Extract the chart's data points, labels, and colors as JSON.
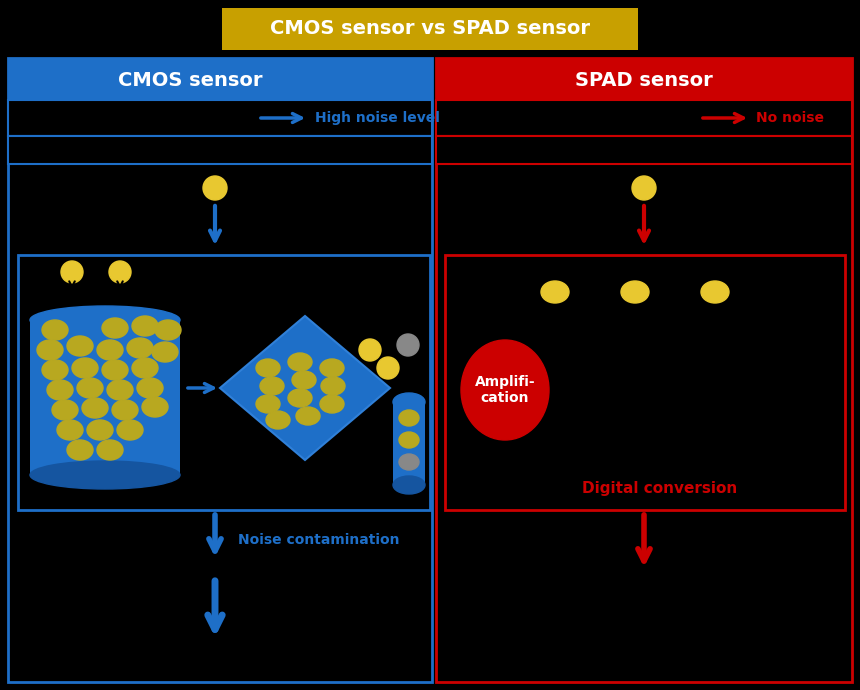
{
  "title": "CMOS sensor vs SPAD sensor",
  "title_bg": "#C8A000",
  "title_color": "white",
  "bg_color": "black",
  "blue_color": "#1E6FC8",
  "red_color": "#CC0000",
  "gold_color": "#E8C830",
  "dark_gold": "#B8A820",
  "gray_color": "#888888",
  "white": "white",
  "black": "black",
  "cmos_label": "CMOS sensor",
  "spad_label": "SPAD sensor",
  "cmos_noise_label": "High noise level",
  "spad_noise_label": "No noise",
  "noise_contamination_label": "Noise contamination",
  "digital_conversion_label": "Digital conversion",
  "amplification_label": "Amplifi-\ncation"
}
